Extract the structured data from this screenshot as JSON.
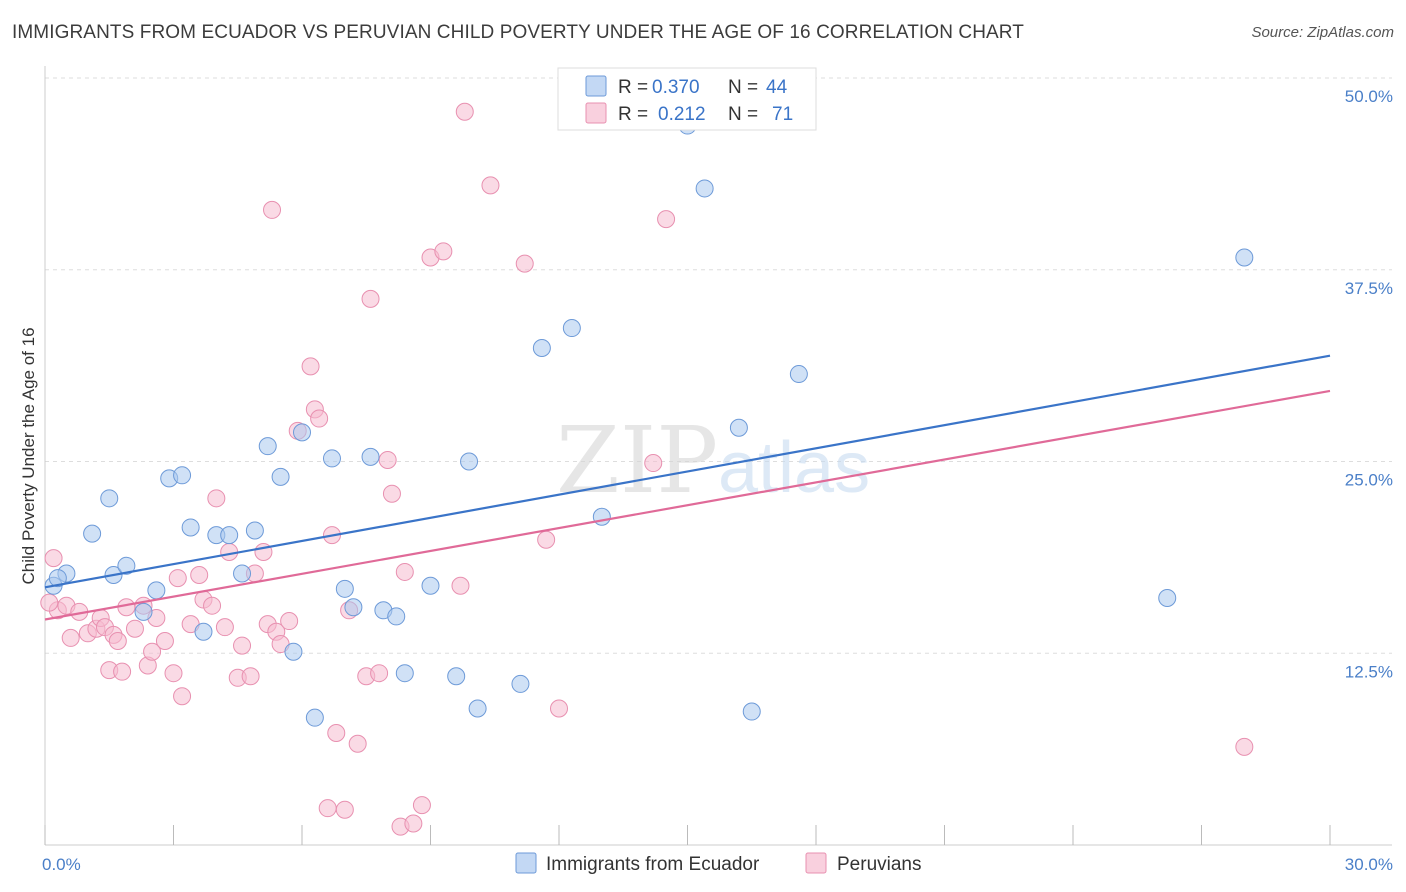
{
  "title": "IMMIGRANTS FROM ECUADOR VS PERUVIAN CHILD POVERTY UNDER THE AGE OF 16 CORRELATION CHART",
  "source": "Source: ZipAtlas.com",
  "watermark": {
    "zip": "ZIP",
    "atlas": "atlas"
  },
  "colors": {
    "blue_fill": "#aac8ef",
    "blue_stroke": "#6d9ad8",
    "blue_line": "#3a74c8",
    "pink_fill": "#f6bcd0",
    "pink_stroke": "#e890b0",
    "pink_line": "#e06a98",
    "grid": "#dddddd",
    "tick_text": "#4a7fc8"
  },
  "legend": {
    "series": [
      {
        "r_label": "R =",
        "r_value": "0.370",
        "n_label": "N =",
        "n_value": "44"
      },
      {
        "r_label": "R =",
        "r_value": "0.212",
        "n_label": "N =",
        "n_value": "71"
      }
    ]
  },
  "bottom_legend": [
    "Immigrants from Ecuador",
    "Peruvians"
  ],
  "chart_data": {
    "type": "scatter",
    "title": "IMMIGRANTS FROM ECUADOR VS PERUVIAN CHILD POVERTY UNDER THE AGE OF 16 CORRELATION CHART",
    "xlabel": "",
    "ylabel": "Child Poverty Under the Age of 16",
    "xlim": [
      0,
      30
    ],
    "ylim": [
      0,
      50
    ],
    "x_tick_labels": [
      "0.0%",
      "30.0%"
    ],
    "y_ticks": [
      12.5,
      25.0,
      37.5,
      50.0
    ],
    "y_tick_labels": [
      "12.5%",
      "25.0%",
      "37.5%",
      "50.0%"
    ],
    "grid": true,
    "legend_position": "top-center",
    "series": [
      {
        "name": "Immigrants from Ecuador",
        "color": "#aac8ef",
        "r": 0.37,
        "n": 44,
        "trend": [
          [
            0,
            16.8
          ],
          [
            30,
            31.9
          ]
        ],
        "points": [
          [
            0.2,
            16.9
          ],
          [
            0.5,
            17.7
          ],
          [
            1.1,
            20.3
          ],
          [
            1.5,
            22.6
          ],
          [
            1.6,
            17.6
          ],
          [
            1.9,
            18.2
          ],
          [
            2.3,
            15.2
          ],
          [
            2.6,
            16.6
          ],
          [
            2.9,
            23.9
          ],
          [
            3.2,
            24.1
          ],
          [
            3.4,
            20.7
          ],
          [
            3.7,
            13.9
          ],
          [
            4.0,
            20.2
          ],
          [
            4.3,
            20.2
          ],
          [
            4.6,
            17.7
          ],
          [
            4.9,
            20.5
          ],
          [
            5.2,
            26.0
          ],
          [
            5.5,
            24.0
          ],
          [
            5.8,
            12.6
          ],
          [
            6.0,
            26.9
          ],
          [
            6.3,
            8.3
          ],
          [
            6.7,
            25.2
          ],
          [
            7.0,
            16.7
          ],
          [
            7.2,
            15.5
          ],
          [
            7.6,
            25.3
          ],
          [
            7.9,
            15.3
          ],
          [
            8.2,
            14.9
          ],
          [
            8.4,
            11.2
          ],
          [
            9.0,
            16.9
          ],
          [
            9.6,
            11.0
          ],
          [
            9.9,
            25.0
          ],
          [
            10.1,
            8.9
          ],
          [
            11.1,
            10.5
          ],
          [
            11.6,
            32.4
          ],
          [
            12.3,
            33.7
          ],
          [
            13.0,
            21.4
          ],
          [
            15.0,
            46.9
          ],
          [
            15.4,
            42.8
          ],
          [
            16.2,
            27.2
          ],
          [
            16.5,
            8.7
          ],
          [
            17.6,
            30.7
          ],
          [
            26.2,
            16.1
          ],
          [
            28.0,
            38.3
          ],
          [
            0.3,
            17.4
          ]
        ]
      },
      {
        "name": "Peruvians",
        "color": "#f6bcd0",
        "r": 0.212,
        "n": 71,
        "trend": [
          [
            0,
            14.7
          ],
          [
            30,
            29.6
          ]
        ],
        "points": [
          [
            0.2,
            18.7
          ],
          [
            0.3,
            15.3
          ],
          [
            0.5,
            15.6
          ],
          [
            0.6,
            13.5
          ],
          [
            0.8,
            15.2
          ],
          [
            1.0,
            13.8
          ],
          [
            1.2,
            14.1
          ],
          [
            1.3,
            14.8
          ],
          [
            1.4,
            14.2
          ],
          [
            1.5,
            11.4
          ],
          [
            1.6,
            13.7
          ],
          [
            1.7,
            13.3
          ],
          [
            1.8,
            11.3
          ],
          [
            1.9,
            15.5
          ],
          [
            2.1,
            14.1
          ],
          [
            2.3,
            15.6
          ],
          [
            2.4,
            11.7
          ],
          [
            2.5,
            12.6
          ],
          [
            2.6,
            14.8
          ],
          [
            2.8,
            13.3
          ],
          [
            3.0,
            11.2
          ],
          [
            3.1,
            17.4
          ],
          [
            3.2,
            9.7
          ],
          [
            3.4,
            14.4
          ],
          [
            3.6,
            17.6
          ],
          [
            3.7,
            16.0
          ],
          [
            3.9,
            15.6
          ],
          [
            4.0,
            22.6
          ],
          [
            4.2,
            14.2
          ],
          [
            4.3,
            19.1
          ],
          [
            4.5,
            10.9
          ],
          [
            4.6,
            13.0
          ],
          [
            4.8,
            11.0
          ],
          [
            4.9,
            17.7
          ],
          [
            5.1,
            19.1
          ],
          [
            5.2,
            14.4
          ],
          [
            5.4,
            13.9
          ],
          [
            5.5,
            13.1
          ],
          [
            5.7,
            14.6
          ],
          [
            5.9,
            27.0
          ],
          [
            6.2,
            31.2
          ],
          [
            6.3,
            28.4
          ],
          [
            6.4,
            27.8
          ],
          [
            5.3,
            41.4
          ],
          [
            6.6,
            2.4
          ],
          [
            6.7,
            20.2
          ],
          [
            6.8,
            7.3
          ],
          [
            7.0,
            2.3
          ],
          [
            7.1,
            15.3
          ],
          [
            7.3,
            6.6
          ],
          [
            7.6,
            35.6
          ],
          [
            7.5,
            11.0
          ],
          [
            7.8,
            11.2
          ],
          [
            8.0,
            25.1
          ],
          [
            8.1,
            22.9
          ],
          [
            8.3,
            1.2
          ],
          [
            8.4,
            17.8
          ],
          [
            8.6,
            1.4
          ],
          [
            8.8,
            2.6
          ],
          [
            9.0,
            38.3
          ],
          [
            9.3,
            38.7
          ],
          [
            9.7,
            16.9
          ],
          [
            9.8,
            47.8
          ],
          [
            10.4,
            43.0
          ],
          [
            11.2,
            37.9
          ],
          [
            11.7,
            19.9
          ],
          [
            12.0,
            8.9
          ],
          [
            14.2,
            24.9
          ],
          [
            14.5,
            40.8
          ],
          [
            28.0,
            6.4
          ],
          [
            0.1,
            15.8
          ]
        ]
      }
    ]
  }
}
